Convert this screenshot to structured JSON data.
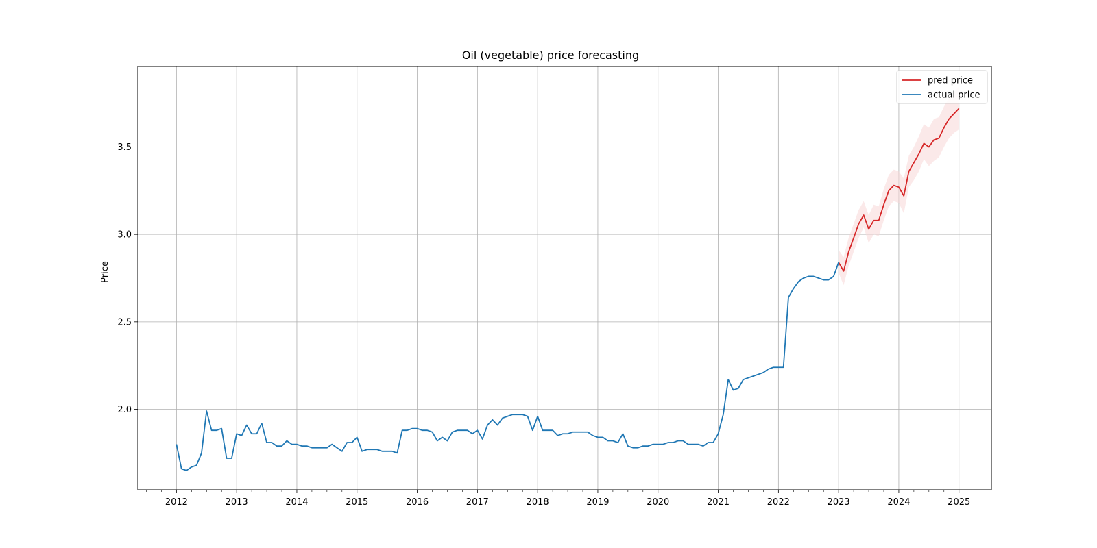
{
  "chart_data": {
    "type": "line",
    "title": "Oil (vegetable) price forecasting",
    "xlabel": "",
    "ylabel": "Price",
    "xlim": [
      "2011-05-10",
      "2025-07-15"
    ],
    "ylim": [
      1.54,
      3.96
    ],
    "x_ticks": [
      "2012",
      "2013",
      "2014",
      "2015",
      "2016",
      "2017",
      "2018",
      "2019",
      "2020",
      "2021",
      "2022",
      "2023",
      "2024",
      "2025"
    ],
    "y_ticks": [
      "2.0",
      "2.5",
      "3.0",
      "3.5"
    ],
    "grid": true,
    "legend_position": "top-right",
    "series": [
      {
        "name": "pred price",
        "color": "#d62728",
        "band_color": "#f8d7d7",
        "x": [
          "2023-01",
          "2023-02",
          "2023-03",
          "2023-04",
          "2023-05",
          "2023-06",
          "2023-07",
          "2023-08",
          "2023-09",
          "2023-10",
          "2023-11",
          "2023-12",
          "2024-01",
          "2024-02",
          "2024-03",
          "2024-04",
          "2024-05",
          "2024-06",
          "2024-07",
          "2024-08",
          "2024-09",
          "2024-10",
          "2024-11",
          "2024-12",
          "2025-01"
        ],
        "values": [
          2.84,
          2.79,
          2.9,
          2.98,
          3.06,
          3.11,
          3.03,
          3.08,
          3.08,
          3.17,
          3.25,
          3.28,
          3.27,
          3.22,
          3.36,
          3.41,
          3.46,
          3.52,
          3.5,
          3.54,
          3.55,
          3.61,
          3.66,
          3.69,
          3.72
        ],
        "lower": [
          2.78,
          2.71,
          2.82,
          2.9,
          2.98,
          3.04,
          2.95,
          3.0,
          2.99,
          3.08,
          3.16,
          3.19,
          3.18,
          3.12,
          3.27,
          3.31,
          3.36,
          3.43,
          3.39,
          3.42,
          3.44,
          3.5,
          3.55,
          3.58,
          3.6
        ],
        "upper": [
          2.91,
          2.87,
          2.98,
          3.06,
          3.14,
          3.19,
          3.11,
          3.17,
          3.16,
          3.26,
          3.34,
          3.37,
          3.36,
          3.32,
          3.45,
          3.5,
          3.56,
          3.63,
          3.61,
          3.66,
          3.67,
          3.73,
          3.78,
          3.81,
          3.85
        ]
      },
      {
        "name": "actual price",
        "color": "#1f77b4",
        "x": [
          "2012-01",
          "2012-02",
          "2012-03",
          "2012-04",
          "2012-05",
          "2012-06",
          "2012-07",
          "2012-08",
          "2012-09",
          "2012-10",
          "2012-11",
          "2012-12",
          "2013-01",
          "2013-02",
          "2013-03",
          "2013-04",
          "2013-05",
          "2013-06",
          "2013-07",
          "2013-08",
          "2013-09",
          "2013-10",
          "2013-11",
          "2013-12",
          "2014-01",
          "2014-02",
          "2014-03",
          "2014-04",
          "2014-05",
          "2014-06",
          "2014-07",
          "2014-08",
          "2014-09",
          "2014-10",
          "2014-11",
          "2014-12",
          "2015-01",
          "2015-02",
          "2015-03",
          "2015-04",
          "2015-05",
          "2015-06",
          "2015-07",
          "2015-08",
          "2015-09",
          "2015-10",
          "2015-11",
          "2015-12",
          "2016-01",
          "2016-02",
          "2016-03",
          "2016-04",
          "2016-05",
          "2016-06",
          "2016-07",
          "2016-08",
          "2016-09",
          "2016-10",
          "2016-11",
          "2016-12",
          "2017-01",
          "2017-02",
          "2017-03",
          "2017-04",
          "2017-05",
          "2017-06",
          "2017-07",
          "2017-08",
          "2017-09",
          "2017-10",
          "2017-11",
          "2017-12",
          "2018-01",
          "2018-02",
          "2018-03",
          "2018-04",
          "2018-05",
          "2018-06",
          "2018-07",
          "2018-08",
          "2018-09",
          "2018-10",
          "2018-11",
          "2018-12",
          "2019-01",
          "2019-02",
          "2019-03",
          "2019-04",
          "2019-05",
          "2019-06",
          "2019-07",
          "2019-08",
          "2019-09",
          "2019-10",
          "2019-11",
          "2019-12",
          "2020-01",
          "2020-02",
          "2020-03",
          "2020-04",
          "2020-05",
          "2020-06",
          "2020-07",
          "2020-08",
          "2020-09",
          "2020-10",
          "2020-11",
          "2020-12",
          "2021-01",
          "2021-02",
          "2021-03",
          "2021-04",
          "2021-05",
          "2021-06",
          "2021-07",
          "2021-08",
          "2021-09",
          "2021-10",
          "2021-11",
          "2021-12",
          "2022-01",
          "2022-02",
          "2022-03",
          "2022-04",
          "2022-05",
          "2022-06",
          "2022-07",
          "2022-08",
          "2022-09",
          "2022-10",
          "2022-11",
          "2022-12",
          "2023-01"
        ],
        "values": [
          1.8,
          1.66,
          1.65,
          1.67,
          1.68,
          1.75,
          1.99,
          1.88,
          1.88,
          1.89,
          1.72,
          1.72,
          1.86,
          1.85,
          1.91,
          1.86,
          1.86,
          1.92,
          1.81,
          1.81,
          1.79,
          1.79,
          1.82,
          1.8,
          1.8,
          1.79,
          1.79,
          1.78,
          1.78,
          1.78,
          1.78,
          1.8,
          1.78,
          1.76,
          1.81,
          1.81,
          1.84,
          1.76,
          1.77,
          1.77,
          1.77,
          1.76,
          1.76,
          1.76,
          1.75,
          1.88,
          1.88,
          1.89,
          1.89,
          1.88,
          1.88,
          1.87,
          1.82,
          1.84,
          1.82,
          1.87,
          1.88,
          1.88,
          1.88,
          1.86,
          1.88,
          1.83,
          1.91,
          1.94,
          1.91,
          1.95,
          1.96,
          1.97,
          1.97,
          1.97,
          1.96,
          1.88,
          1.96,
          1.88,
          1.88,
          1.88,
          1.85,
          1.86,
          1.86,
          1.87,
          1.87,
          1.87,
          1.87,
          1.85,
          1.84,
          1.84,
          1.82,
          1.82,
          1.81,
          1.86,
          1.79,
          1.78,
          1.78,
          1.79,
          1.79,
          1.8,
          1.8,
          1.8,
          1.81,
          1.81,
          1.82,
          1.82,
          1.8,
          1.8,
          1.8,
          1.79,
          1.81,
          1.81,
          1.86,
          1.97,
          2.17,
          2.11,
          2.12,
          2.17,
          2.18,
          2.19,
          2.2,
          2.21,
          2.23,
          2.24,
          2.24,
          2.24,
          2.64,
          2.69,
          2.73,
          2.75,
          2.76,
          2.76,
          2.75,
          2.74,
          2.74,
          2.76,
          2.84
        ]
      }
    ]
  }
}
